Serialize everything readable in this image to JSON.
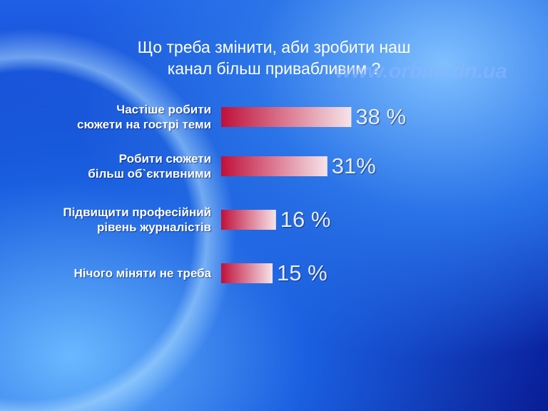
{
  "chart_data": {
    "type": "bar",
    "orientation": "horizontal",
    "title": [
      "Що треба змінити, аби зробити наш",
      "канал більш привабливим ?"
    ],
    "watermark": "www.orbita.dn.ua",
    "categories": [
      "Частіше робити\nсюжети на гострі теми",
      "Робити сюжети\nбільш об`єктивними",
      "Підвищити професійний\nрівень журналістів",
      "Нічого міняти не треба"
    ],
    "values": [
      38,
      31,
      16,
      15
    ],
    "value_labels": [
      "38 %",
      "31%",
      "16 %",
      "15 %"
    ],
    "color": [
      "#c0103a",
      "#f6e4e9"
    ]
  }
}
